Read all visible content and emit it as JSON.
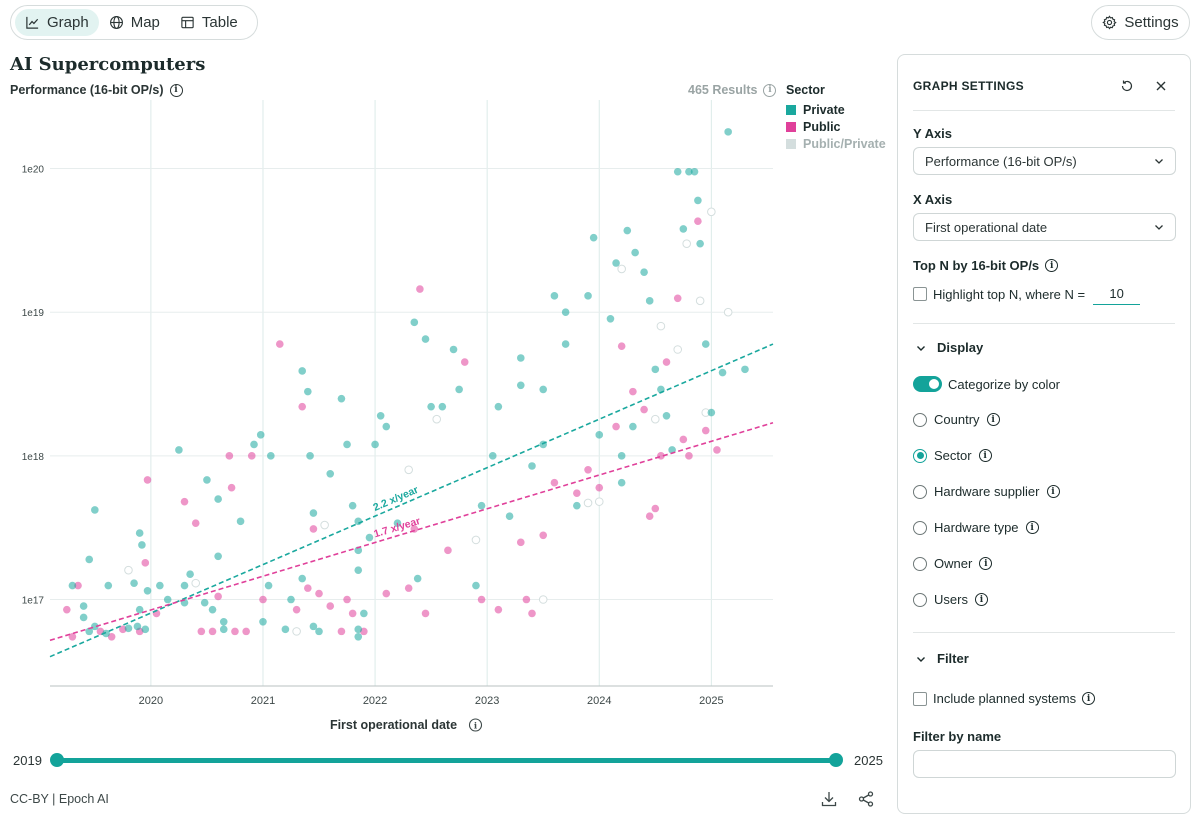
{
  "toolbar": {
    "graph_label": "Graph",
    "map_label": "Map",
    "table_label": "Table",
    "settings_label": "Settings"
  },
  "header": {
    "title": "AI Supercomputers",
    "y_axis_title": "Performance (16-bit OP/s)",
    "results_label": "465 Results"
  },
  "legend": {
    "title": "Sector",
    "items": [
      {
        "label": "Private",
        "color": "#1aa89e",
        "text_color": "#1c2b2b"
      },
      {
        "label": "Public",
        "color": "#e0409a",
        "text_color": "#1c2b2b"
      },
      {
        "label": "Public/Private",
        "color": "#d4dede",
        "text_color": "#a5b0b0"
      }
    ]
  },
  "chart_data": {
    "type": "scatter",
    "title": "AI Supercomputers",
    "xlabel": "First operational date",
    "ylabel": "Performance (16-bit OP/s)",
    "y_scale": "log",
    "x_range": [
      2019.1,
      2025.55
    ],
    "y_range": [
      2.5e+16,
      3e+20
    ],
    "x_ticks": [
      2020,
      2021,
      2022,
      2023,
      2024,
      2025
    ],
    "y_ticks": [
      1e+17,
      1e+18,
      1e+19,
      1e+20
    ],
    "y_tick_labels": [
      "1e17",
      "1e18",
      "1e19",
      "1e20"
    ],
    "grid": true,
    "legend_position": "top-right",
    "series": [
      {
        "name": "Private",
        "color": "#1aa89e",
        "points": [
          [
            2019.3,
            1.25e+17
          ],
          [
            2019.4,
            9e+16
          ],
          [
            2019.5,
            4.2e+17
          ],
          [
            2019.45,
            1.9e+17
          ],
          [
            2019.4,
            7.5e+16
          ],
          [
            2019.45,
            6e+16
          ],
          [
            2019.5,
            6.5e+16
          ],
          [
            2019.6,
            5.8e+16
          ],
          [
            2019.62,
            1.25e+17
          ],
          [
            2019.8,
            6.3e+16
          ],
          [
            2019.85,
            1.3e+17
          ],
          [
            2019.88,
            6.5e+16
          ],
          [
            2019.9,
            2.9e+17
          ],
          [
            2019.92,
            2.4e+17
          ],
          [
            2019.9,
            8.5e+16
          ],
          [
            2019.95,
            6.2e+16
          ],
          [
            2019.97,
            1.15e+17
          ],
          [
            2020.08,
            1.25e+17
          ],
          [
            2020.15,
            1e+17
          ],
          [
            2020.25,
            1.1e+18
          ],
          [
            2020.3,
            1.25e+17
          ],
          [
            2020.3,
            9.5e+16
          ],
          [
            2020.35,
            1.5e+17
          ],
          [
            2020.48,
            9.5e+16
          ],
          [
            2020.5,
            6.8e+17
          ],
          [
            2020.55,
            8.5e+16
          ],
          [
            2020.6,
            5e+17
          ],
          [
            2020.6,
            2e+17
          ],
          [
            2020.65,
            7e+16
          ],
          [
            2020.65,
            6.2e+16
          ],
          [
            2020.8,
            3.5e+17
          ],
          [
            2020.92,
            1.2e+18
          ],
          [
            2020.98,
            1.4e+18
          ],
          [
            2021.0,
            7e+16
          ],
          [
            2021.05,
            1.25e+17
          ],
          [
            2021.07,
            1e+18
          ],
          [
            2021.2,
            6.2e+16
          ],
          [
            2021.25,
            1e+17
          ],
          [
            2021.35,
            1.4e+17
          ],
          [
            2021.35,
            3.9e+18
          ],
          [
            2021.4,
            2.8e+18
          ],
          [
            2021.42,
            1e+18
          ],
          [
            2021.45,
            4e+17
          ],
          [
            2021.45,
            6.5e+16
          ],
          [
            2021.5,
            6e+16
          ],
          [
            2021.6,
            7.5e+17
          ],
          [
            2021.7,
            2.5e+18
          ],
          [
            2021.75,
            1.2e+18
          ],
          [
            2021.8,
            4.5e+17
          ],
          [
            2021.85,
            3.5e+17
          ],
          [
            2021.85,
            2.2e+17
          ],
          [
            2021.85,
            1.6e+17
          ],
          [
            2021.85,
            6.2e+16
          ],
          [
            2021.85,
            5.5e+16
          ],
          [
            2021.9,
            8e+16
          ],
          [
            2021.95,
            2.7e+17
          ],
          [
            2022.0,
            1.2e+18
          ],
          [
            2022.05,
            1.9e+18
          ],
          [
            2022.1,
            1.6e+18
          ],
          [
            2022.2,
            3.4e+17
          ],
          [
            2022.35,
            8.5e+18
          ],
          [
            2022.38,
            1.4e+17
          ],
          [
            2022.45,
            6.5e+18
          ],
          [
            2022.5,
            2.2e+18
          ],
          [
            2022.6,
            2.2e+18
          ],
          [
            2022.7,
            5.5e+18
          ],
          [
            2022.75,
            2.9e+18
          ],
          [
            2022.9,
            1.25e+17
          ],
          [
            2022.95,
            4.5e+17
          ],
          [
            2023.05,
            1e+18
          ],
          [
            2023.1,
            2.2e+18
          ],
          [
            2023.2,
            3.8e+17
          ],
          [
            2023.3,
            4.8e+18
          ],
          [
            2023.3,
            3.1e+18
          ],
          [
            2023.4,
            8.5e+17
          ],
          [
            2023.5,
            2.9e+18
          ],
          [
            2023.5,
            1.2e+18
          ],
          [
            2023.6,
            1.3e+19
          ],
          [
            2023.7,
            1e+19
          ],
          [
            2023.7,
            6e+18
          ],
          [
            2023.8,
            4.5e+17
          ],
          [
            2023.9,
            1.3e+19
          ],
          [
            2023.95,
            3.3e+19
          ],
          [
            2024.0,
            1.4e+18
          ],
          [
            2024.1,
            9e+18
          ],
          [
            2024.15,
            2.2e+19
          ],
          [
            2024.2,
            1e+18
          ],
          [
            2024.2,
            6.5e+17
          ],
          [
            2024.25,
            3.7e+19
          ],
          [
            2024.3,
            1.6e+18
          ],
          [
            2024.32,
            2.6e+19
          ],
          [
            2024.4,
            1.9e+19
          ],
          [
            2024.45,
            1.2e+19
          ],
          [
            2024.5,
            4e+18
          ],
          [
            2024.55,
            2.9e+18
          ],
          [
            2024.6,
            1.9e+18
          ],
          [
            2024.65,
            1.1e+18
          ],
          [
            2024.7,
            9.5e+19
          ],
          [
            2024.75,
            3.8e+19
          ],
          [
            2024.8,
            9.5e+19
          ],
          [
            2024.85,
            9.5e+19
          ],
          [
            2024.88,
            6e+19
          ],
          [
            2024.9,
            3e+19
          ],
          [
            2024.95,
            6e+18
          ],
          [
            2025.0,
            2e+18
          ],
          [
            2025.1,
            3.8e+18
          ],
          [
            2025.15,
            1.8e+20
          ],
          [
            2025.3,
            4e+18
          ]
        ]
      },
      {
        "name": "Public",
        "color": "#e0409a",
        "points": [
          [
            2019.25,
            8.5e+16
          ],
          [
            2019.3,
            5.5e+16
          ],
          [
            2019.35,
            1.25e+17
          ],
          [
            2019.55,
            6e+16
          ],
          [
            2019.65,
            5.5e+16
          ],
          [
            2019.75,
            6.2e+16
          ],
          [
            2019.9,
            6e+16
          ],
          [
            2019.95,
            1.8e+17
          ],
          [
            2019.97,
            6.8e+17
          ],
          [
            2020.05,
            8e+16
          ],
          [
            2020.3,
            4.8e+17
          ],
          [
            2020.4,
            3.4e+17
          ],
          [
            2020.45,
            6e+16
          ],
          [
            2020.55,
            6e+16
          ],
          [
            2020.6,
            1.05e+17
          ],
          [
            2020.7,
            1e+18
          ],
          [
            2020.72,
            6e+17
          ],
          [
            2020.75,
            6e+16
          ],
          [
            2020.85,
            6e+16
          ],
          [
            2020.9,
            1e+18
          ],
          [
            2021.0,
            1e+17
          ],
          [
            2021.15,
            6e+18
          ],
          [
            2021.3,
            8.5e+16
          ],
          [
            2021.35,
            2.2e+18
          ],
          [
            2021.4,
            1.2e+17
          ],
          [
            2021.45,
            3.1e+17
          ],
          [
            2021.5,
            1.1e+17
          ],
          [
            2021.6,
            9e+16
          ],
          [
            2021.7,
            6e+16
          ],
          [
            2021.75,
            1e+17
          ],
          [
            2021.8,
            8e+16
          ],
          [
            2021.9,
            6e+16
          ],
          [
            2022.1,
            1.1e+17
          ],
          [
            2022.3,
            1.2e+17
          ],
          [
            2022.35,
            3.1e+17
          ],
          [
            2022.4,
            1.45e+19
          ],
          [
            2022.45,
            8e+16
          ],
          [
            2022.65,
            2.2e+17
          ],
          [
            2022.8,
            4.5e+18
          ],
          [
            2022.95,
            1e+17
          ],
          [
            2023.1,
            8.5e+16
          ],
          [
            2023.3,
            2.5e+17
          ],
          [
            2023.35,
            1e+17
          ],
          [
            2023.4,
            8e+16
          ],
          [
            2023.5,
            2.8e+17
          ],
          [
            2023.6,
            6.5e+17
          ],
          [
            2023.8,
            5.5e+17
          ],
          [
            2023.9,
            8e+17
          ],
          [
            2024.0,
            6e+17
          ],
          [
            2024.15,
            1.6e+18
          ],
          [
            2024.2,
            5.8e+18
          ],
          [
            2024.3,
            2.8e+18
          ],
          [
            2024.4,
            2.1e+18
          ],
          [
            2024.45,
            3.8e+17
          ],
          [
            2024.5,
            4.3e+17
          ],
          [
            2024.55,
            1e+18
          ],
          [
            2024.6,
            4.5e+18
          ],
          [
            2024.7,
            1.25e+19
          ],
          [
            2024.75,
            1.3e+18
          ],
          [
            2024.8,
            1e+18
          ],
          [
            2024.88,
            4.3e+19
          ],
          [
            2024.95,
            1.5e+18
          ],
          [
            2025.05,
            1.1e+18
          ]
        ]
      },
      {
        "name": "Public/Private",
        "color": "#d4dede",
        "points": [
          [
            2019.8,
            1.6e+17
          ],
          [
            2020.4,
            1.3e+17
          ],
          [
            2021.3,
            6e+16
          ],
          [
            2021.55,
            3.3e+17
          ],
          [
            2022.3,
            8e+17
          ],
          [
            2022.55,
            1.8e+18
          ],
          [
            2022.9,
            2.6e+17
          ],
          [
            2023.5,
            1e+17
          ],
          [
            2023.9,
            4.7e+17
          ],
          [
            2024.0,
            4.8e+17
          ],
          [
            2024.2,
            2e+19
          ],
          [
            2024.5,
            1.8e+18
          ],
          [
            2024.55,
            8e+18
          ],
          [
            2024.7,
            5.5e+18
          ],
          [
            2024.78,
            3e+19
          ],
          [
            2024.9,
            1.2e+19
          ],
          [
            2024.95,
            2e+18
          ],
          [
            2025.0,
            5e+19
          ],
          [
            2025.15,
            1e+19
          ]
        ]
      }
    ],
    "trend_lines": [
      {
        "label": "2.2 x/year",
        "color": "#1aa89e",
        "from": [
          2019.1,
          4e+16
        ],
        "to": [
          2025.55,
          6e+18
        ]
      },
      {
        "label": "1.7 x/year",
        "color": "#e0409a",
        "from": [
          2019.1,
          5.2e+16
        ],
        "to": [
          2025.55,
          1.7e+18
        ]
      }
    ]
  },
  "range_slider": {
    "min_label": "2019",
    "max_label": "2025"
  },
  "footer": {
    "credit": "CC-BY | Epoch AI"
  },
  "settings_panel": {
    "title": "GRAPH SETTINGS",
    "y_axis_label": "Y Axis",
    "y_axis_value": "Performance (16-bit OP/s)",
    "x_axis_label": "X Axis",
    "x_axis_value": "First operational date",
    "top_n_label": "Top N by 16-bit OP/s",
    "highlight_label": "Highlight top N, where N =",
    "n_value": "10",
    "display_label": "Display",
    "categorize_label": "Categorize by color",
    "radio_country": "Country",
    "radio_sector": "Sector",
    "radio_supplier": "Hardware supplier",
    "radio_type": "Hardware type",
    "radio_owner": "Owner",
    "radio_users": "Users",
    "filter_label": "Filter",
    "planned_label": "Include planned systems",
    "filter_name_label": "Filter by name",
    "filter_name_value": ""
  }
}
